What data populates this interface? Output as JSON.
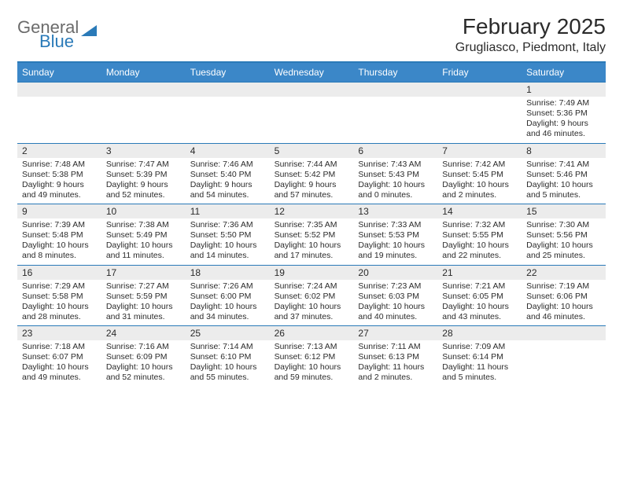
{
  "logo": {
    "text_gray": "General",
    "text_blue": "Blue"
  },
  "title": "February 2025",
  "location": "Grugliasco, Piedmont, Italy",
  "colors": {
    "header_bg": "#3b87c8",
    "border": "#2a7ab8",
    "daynum_bg": "#ececec",
    "text": "#2b2b2b",
    "logo_gray": "#6b6b6b"
  },
  "days_of_week": [
    "Sunday",
    "Monday",
    "Tuesday",
    "Wednesday",
    "Thursday",
    "Friday",
    "Saturday"
  ],
  "weeks": [
    {
      "nums": [
        "",
        "",
        "",
        "",
        "",
        "",
        "1"
      ],
      "cells": [
        "",
        "",
        "",
        "",
        "",
        "",
        "Sunrise: 7:49 AM\nSunset: 5:36 PM\nDaylight: 9 hours and 46 minutes."
      ]
    },
    {
      "nums": [
        "2",
        "3",
        "4",
        "5",
        "6",
        "7",
        "8"
      ],
      "cells": [
        "Sunrise: 7:48 AM\nSunset: 5:38 PM\nDaylight: 9 hours and 49 minutes.",
        "Sunrise: 7:47 AM\nSunset: 5:39 PM\nDaylight: 9 hours and 52 minutes.",
        "Sunrise: 7:46 AM\nSunset: 5:40 PM\nDaylight: 9 hours and 54 minutes.",
        "Sunrise: 7:44 AM\nSunset: 5:42 PM\nDaylight: 9 hours and 57 minutes.",
        "Sunrise: 7:43 AM\nSunset: 5:43 PM\nDaylight: 10 hours and 0 minutes.",
        "Sunrise: 7:42 AM\nSunset: 5:45 PM\nDaylight: 10 hours and 2 minutes.",
        "Sunrise: 7:41 AM\nSunset: 5:46 PM\nDaylight: 10 hours and 5 minutes."
      ]
    },
    {
      "nums": [
        "9",
        "10",
        "11",
        "12",
        "13",
        "14",
        "15"
      ],
      "cells": [
        "Sunrise: 7:39 AM\nSunset: 5:48 PM\nDaylight: 10 hours and 8 minutes.",
        "Sunrise: 7:38 AM\nSunset: 5:49 PM\nDaylight: 10 hours and 11 minutes.",
        "Sunrise: 7:36 AM\nSunset: 5:50 PM\nDaylight: 10 hours and 14 minutes.",
        "Sunrise: 7:35 AM\nSunset: 5:52 PM\nDaylight: 10 hours and 17 minutes.",
        "Sunrise: 7:33 AM\nSunset: 5:53 PM\nDaylight: 10 hours and 19 minutes.",
        "Sunrise: 7:32 AM\nSunset: 5:55 PM\nDaylight: 10 hours and 22 minutes.",
        "Sunrise: 7:30 AM\nSunset: 5:56 PM\nDaylight: 10 hours and 25 minutes."
      ]
    },
    {
      "nums": [
        "16",
        "17",
        "18",
        "19",
        "20",
        "21",
        "22"
      ],
      "cells": [
        "Sunrise: 7:29 AM\nSunset: 5:58 PM\nDaylight: 10 hours and 28 minutes.",
        "Sunrise: 7:27 AM\nSunset: 5:59 PM\nDaylight: 10 hours and 31 minutes.",
        "Sunrise: 7:26 AM\nSunset: 6:00 PM\nDaylight: 10 hours and 34 minutes.",
        "Sunrise: 7:24 AM\nSunset: 6:02 PM\nDaylight: 10 hours and 37 minutes.",
        "Sunrise: 7:23 AM\nSunset: 6:03 PM\nDaylight: 10 hours and 40 minutes.",
        "Sunrise: 7:21 AM\nSunset: 6:05 PM\nDaylight: 10 hours and 43 minutes.",
        "Sunrise: 7:19 AM\nSunset: 6:06 PM\nDaylight: 10 hours and 46 minutes."
      ]
    },
    {
      "nums": [
        "23",
        "24",
        "25",
        "26",
        "27",
        "28",
        ""
      ],
      "cells": [
        "Sunrise: 7:18 AM\nSunset: 6:07 PM\nDaylight: 10 hours and 49 minutes.",
        "Sunrise: 7:16 AM\nSunset: 6:09 PM\nDaylight: 10 hours and 52 minutes.",
        "Sunrise: 7:14 AM\nSunset: 6:10 PM\nDaylight: 10 hours and 55 minutes.",
        "Sunrise: 7:13 AM\nSunset: 6:12 PM\nDaylight: 10 hours and 59 minutes.",
        "Sunrise: 7:11 AM\nSunset: 6:13 PM\nDaylight: 11 hours and 2 minutes.",
        "Sunrise: 7:09 AM\nSunset: 6:14 PM\nDaylight: 11 hours and 5 minutes.",
        ""
      ]
    }
  ]
}
